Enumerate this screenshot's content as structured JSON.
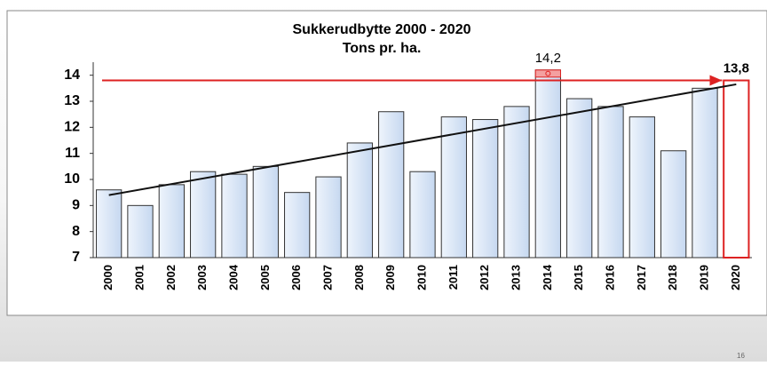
{
  "chart_data": {
    "type": "bar",
    "title": "Sukkerudbytte  2000 - 2020",
    "subtitle": "Tons pr. ha.",
    "categories": [
      "2000",
      "2001",
      "2002",
      "2003",
      "2004",
      "2005",
      "2006",
      "2007",
      "2008",
      "2009",
      "2010",
      "2011",
      "2012",
      "2013",
      "2014",
      "2015",
      "2016",
      "2017",
      "2018",
      "2019",
      "2020"
    ],
    "values": [
      9.6,
      9.0,
      9.8,
      10.3,
      10.2,
      10.5,
      9.5,
      10.1,
      11.4,
      12.6,
      10.3,
      12.4,
      12.3,
      12.8,
      14.2,
      13.1,
      12.8,
      12.4,
      11.1,
      13.5,
      13.8
    ],
    "value_labels": [
      null,
      null,
      null,
      null,
      null,
      null,
      null,
      null,
      null,
      null,
      null,
      null,
      null,
      null,
      "14,2",
      null,
      null,
      null,
      null,
      null,
      "13,8"
    ],
    "color": "#dbe7f7",
    "trend_line": [
      9.4,
      13.65
    ],
    "ylim": [
      7,
      14.5
    ],
    "yticks": [
      7,
      8,
      9,
      10,
      11,
      12,
      13,
      14
    ]
  },
  "page_number": "16"
}
